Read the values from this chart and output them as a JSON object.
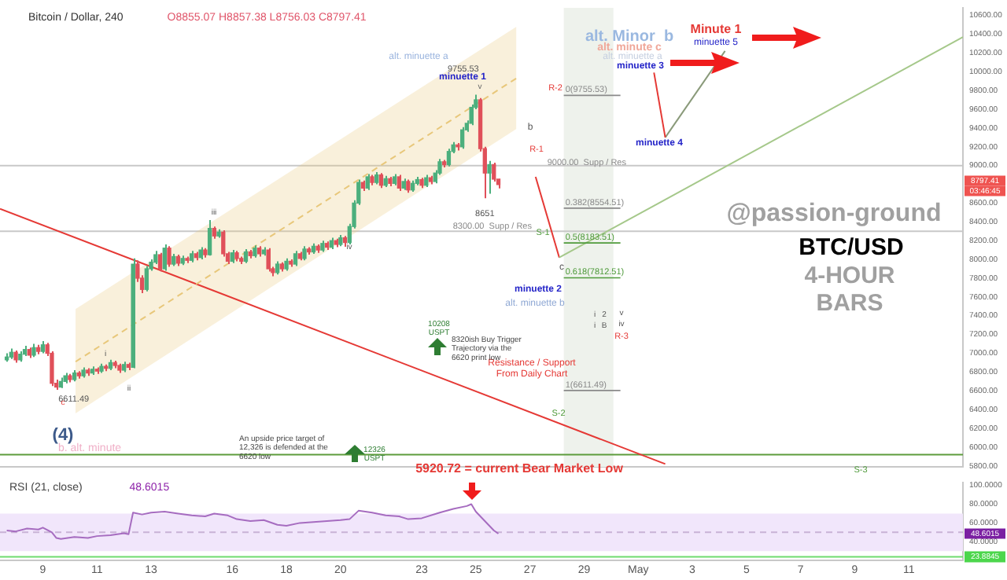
{
  "chart_data": [
    {
      "type": "candlestick",
      "title": "Bitcoin / Dollar, 240",
      "subtitle": "O8855.07 H8857.38 L8756.03 C8797.41",
      "x": [
        "--04-07T16:00",
        "--04-07T20:00",
        "--04-08T00:00",
        "--04-08T04:00",
        "--04-08T08:00",
        "--04-08T12:00",
        "--04-08T16:00",
        "--04-08T20:00",
        "--04-09T00:00",
        "--04-09T04:00",
        "--04-09T08:00",
        "--04-09T12:00",
        "--04-09T16:00",
        "--04-09T20:00",
        "--04-10T00:00",
        "--04-10T04:00",
        "--04-10T08:00",
        "--04-10T12:00",
        "--04-10T16:00",
        "--04-10T20:00",
        "--04-11T00:00",
        "--04-11T04:00",
        "--04-11T08:00",
        "--04-11T12:00",
        "--04-11T16:00",
        "--04-11T20:00",
        "--04-12T00:00",
        "--04-12T04:00",
        "--04-12T08:00",
        "--04-12T12:00",
        "--04-12T16:00",
        "--04-12T20:00",
        "--04-13T00:00",
        "--04-13T04:00",
        "--04-13T08:00",
        "--04-13T12:00",
        "--04-13T16:00",
        "--04-13T20:00",
        "--04-14T00:00",
        "--04-14T04:00",
        "--04-14T08:00",
        "--04-14T12:00",
        "--04-14T16:00",
        "--04-14T20:00",
        "--04-15T00:00",
        "--04-15T04:00",
        "--04-15T08:00",
        "--04-15T12:00",
        "--04-15T16:00",
        "--04-15T20:00",
        "--04-16T00:00",
        "--04-16T04:00",
        "--04-16T08:00",
        "--04-16T12:00",
        "--04-16T16:00",
        "--04-16T20:00",
        "--04-17T00:00",
        "--04-17T04:00",
        "--04-17T08:00",
        "--04-17T12:00",
        "--04-17T16:00",
        "--04-17T20:00",
        "--04-18T00:00",
        "--04-18T04:00",
        "--04-18T08:00",
        "--04-18T12:00",
        "--04-18T16:00",
        "--04-18T20:00",
        "--04-19T00:00",
        "--04-19T04:00",
        "--04-19T08:00",
        "--04-19T12:00",
        "--04-19T16:00",
        "--04-19T20:00",
        "--04-20T00:00",
        "--04-20T04:00",
        "--04-20T08:00",
        "--04-20T12:00",
        "--04-20T16:00",
        "--04-20T20:00",
        "--04-21T00:00",
        "--04-21T04:00",
        "--04-21T08:00",
        "--04-21T12:00",
        "--04-21T16:00",
        "--04-21T20:00",
        "--04-22T00:00",
        "--04-22T04:00",
        "--04-22T08:00",
        "--04-22T12:00",
        "--04-22T16:00",
        "--04-22T20:00",
        "--04-23T00:00",
        "--04-23T04:00",
        "--04-23T08:00",
        "--04-23T12:00",
        "--04-23T16:00",
        "--04-23T20:00",
        "--04-24T00:00",
        "--04-24T04:00",
        "--04-24T08:00",
        "--04-24T12:00",
        "--04-24T16:00",
        "--04-24T20:00",
        "--04-25T00:00",
        "--04-25T04:00",
        "--04-25T08:00",
        "--04-25T12:00",
        "--04-25T16:00",
        "--04-25T20:00"
      ],
      "ohlc": [
        [
          6930,
          7000,
          6910,
          6960
        ],
        [
          6960,
          7050,
          6940,
          7010
        ],
        [
          7010,
          7030,
          6900,
          6930
        ],
        [
          6930,
          7020,
          6910,
          6990
        ],
        [
          6990,
          7080,
          6970,
          7040
        ],
        [
          7040,
          7060,
          6950,
          6980
        ],
        [
          6980,
          7100,
          6960,
          7060
        ],
        [
          7060,
          7090,
          6990,
          7020
        ],
        [
          7020,
          7130,
          7000,
          7090
        ],
        [
          7090,
          7110,
          6970,
          7000
        ],
        [
          7000,
          7020,
          6650,
          6680
        ],
        [
          6680,
          6720,
          6611.49,
          6640
        ],
        [
          6640,
          6740,
          6630,
          6700
        ],
        [
          6700,
          6790,
          6680,
          6760
        ],
        [
          6760,
          6780,
          6690,
          6720
        ],
        [
          6720,
          6820,
          6700,
          6790
        ],
        [
          6790,
          6810,
          6730,
          6760
        ],
        [
          6760,
          6850,
          6740,
          6820
        ],
        [
          6820,
          6840,
          6760,
          6790
        ],
        [
          6790,
          6860,
          6770,
          6830
        ],
        [
          6830,
          6850,
          6780,
          6810
        ],
        [
          6810,
          6890,
          6790,
          6860
        ],
        [
          6860,
          6880,
          6810,
          6840
        ],
        [
          6840,
          6930,
          6820,
          6900
        ],
        [
          6900,
          6920,
          6840,
          6870
        ],
        [
          6870,
          6890,
          6790,
          6820
        ],
        [
          6820,
          6910,
          6800,
          6880
        ],
        [
          6880,
          6900,
          6820,
          6850
        ],
        [
          6850,
          8010,
          6840,
          7950
        ],
        [
          7950,
          7990,
          7760,
          7800
        ],
        [
          7800,
          7830,
          7640,
          7680
        ],
        [
          7680,
          7930,
          7660,
          7900
        ],
        [
          7900,
          8000,
          7880,
          7970
        ],
        [
          7970,
          8090,
          7950,
          8050
        ],
        [
          8050,
          8070,
          7870,
          7900
        ],
        [
          7900,
          8160,
          7880,
          8120
        ],
        [
          8120,
          8140,
          7920,
          7950
        ],
        [
          7950,
          8060,
          7930,
          8030
        ],
        [
          8030,
          8050,
          7930,
          7960
        ],
        [
          7960,
          8040,
          7940,
          8010
        ],
        [
          8010,
          8030,
          7960,
          7990
        ],
        [
          7990,
          8090,
          7970,
          8060
        ],
        [
          8060,
          8080,
          7990,
          8020
        ],
        [
          8020,
          8130,
          8000,
          8100
        ],
        [
          8100,
          8120,
          8020,
          8050
        ],
        [
          8050,
          8420,
          8040,
          8330
        ],
        [
          8330,
          8350,
          8220,
          8250
        ],
        [
          8250,
          8320,
          8230,
          8290
        ],
        [
          8290,
          8310,
          8030,
          8060
        ],
        [
          8060,
          8080,
          7950,
          7980
        ],
        [
          7980,
          8100,
          7960,
          8070
        ],
        [
          8070,
          8090,
          7980,
          8010
        ],
        [
          8010,
          8030,
          7950,
          7980
        ],
        [
          7980,
          8110,
          7960,
          8080
        ],
        [
          8080,
          8100,
          8010,
          8040
        ],
        [
          8040,
          8150,
          8020,
          8120
        ],
        [
          8120,
          8140,
          8030,
          8060
        ],
        [
          8060,
          8130,
          8040,
          8100
        ],
        [
          8100,
          8120,
          7870,
          7900
        ],
        [
          7900,
          7920,
          7820,
          7860
        ],
        [
          7860,
          7980,
          7840,
          7950
        ],
        [
          7950,
          7970,
          7870,
          7900
        ],
        [
          7900,
          8010,
          7880,
          7980
        ],
        [
          7980,
          8000,
          7920,
          7950
        ],
        [
          7950,
          8090,
          7930,
          8060
        ],
        [
          8060,
          8080,
          7990,
          8010
        ],
        [
          8010,
          8140,
          7990,
          8110
        ],
        [
          8110,
          8130,
          8050,
          8080
        ],
        [
          8080,
          8170,
          8060,
          8140
        ],
        [
          8140,
          8160,
          8070,
          8100
        ],
        [
          8100,
          8200,
          8080,
          8170
        ],
        [
          8170,
          8190,
          8100,
          8130
        ],
        [
          8130,
          8230,
          8110,
          8200
        ],
        [
          8200,
          8220,
          8130,
          8160
        ],
        [
          8160,
          8260,
          8140,
          8230
        ],
        [
          8230,
          8250,
          8135,
          8180
        ],
        [
          8180,
          8380,
          8160,
          8350
        ],
        [
          8350,
          8630,
          8330,
          8600
        ],
        [
          8600,
          8850,
          8580,
          8820
        ],
        [
          8820,
          8840,
          8730,
          8760
        ],
        [
          8760,
          8910,
          8740,
          8880
        ],
        [
          8880,
          8900,
          8790,
          8820
        ],
        [
          8820,
          8930,
          8800,
          8900
        ],
        [
          8900,
          8920,
          8760,
          8790
        ],
        [
          8790,
          8890,
          8770,
          8860
        ],
        [
          8860,
          8880,
          8780,
          8810
        ],
        [
          8810,
          8910,
          8790,
          8880
        ],
        [
          8880,
          8900,
          8730,
          8760
        ],
        [
          8760,
          8860,
          8740,
          8830
        ],
        [
          8830,
          8850,
          8710,
          8740
        ],
        [
          8740,
          8840,
          8720,
          8810
        ],
        [
          8810,
          8880,
          8790,
          8850
        ],
        [
          8850,
          8870,
          8760,
          8790
        ],
        [
          8790,
          8900,
          8770,
          8870
        ],
        [
          8870,
          8890,
          8800,
          8830
        ],
        [
          8830,
          8950,
          8810,
          8920
        ],
        [
          8920,
          9070,
          8900,
          9040
        ],
        [
          9040,
          9060,
          8980,
          9010
        ],
        [
          9010,
          9180,
          8990,
          9150
        ],
        [
          9150,
          9250,
          9130,
          9220
        ],
        [
          9220,
          9240,
          9160,
          9200
        ],
        [
          9200,
          9410,
          9180,
          9380
        ],
        [
          9380,
          9480,
          9360,
          9450
        ],
        [
          9450,
          9650,
          9430,
          9620
        ],
        [
          9620,
          9755.53,
          9600,
          9700
        ],
        [
          9700,
          9720,
          9150,
          9180
        ],
        [
          9180,
          9200,
          8651,
          8920
        ],
        [
          8920,
          9050,
          8700,
          9010
        ],
        [
          9010,
          9030,
          8830,
          8855.07
        ],
        [
          8855.07,
          8857.38,
          8756.03,
          8797.41
        ]
      ],
      "colors": [
        "#4caf7d",
        "#4caf7d",
        "#e0505a",
        "#4caf7d",
        "#4caf7d",
        "#e0505a",
        "#4caf7d",
        "#e0505a",
        "#4caf7d",
        "#e0505a",
        "#e0505a",
        "#e0505a",
        "#4caf7d",
        "#4caf7d",
        "#e0505a",
        "#4caf7d",
        "#e0505a",
        "#4caf7d",
        "#e0505a",
        "#4caf7d",
        "#e0505a",
        "#4caf7d",
        "#e0505a",
        "#4caf7d",
        "#e0505a",
        "#e0505a",
        "#4caf7d",
        "#e0505a",
        "#4caf7d",
        "#e0505a",
        "#e0505a",
        "#4caf7d",
        "#4caf7d",
        "#4caf7d",
        "#e0505a",
        "#4caf7d",
        "#e0505a",
        "#4caf7d",
        "#e0505a",
        "#4caf7d",
        "#e0505a",
        "#4caf7d",
        "#e0505a",
        "#4caf7d",
        "#e0505a",
        "#4caf7d",
        "#e0505a",
        "#4caf7d",
        "#e0505a",
        "#e0505a",
        "#4caf7d",
        "#e0505a",
        "#e0505a",
        "#4caf7d",
        "#e0505a",
        "#4caf7d",
        "#e0505a",
        "#4caf7d",
        "#e0505a",
        "#e0505a",
        "#4caf7d",
        "#e0505a",
        "#4caf7d",
        "#e0505a",
        "#4caf7d",
        "#e0505a",
        "#4caf7d",
        "#e0505a",
        "#4caf7d",
        "#e0505a",
        "#4caf7d",
        "#e0505a",
        "#4caf7d",
        "#e0505a",
        "#4caf7d",
        "#e0505a",
        "#4caf7d",
        "#4caf7d",
        "#4caf7d",
        "#e0505a",
        "#4caf7d",
        "#e0505a",
        "#4caf7d",
        "#e0505a",
        "#4caf7d",
        "#e0505a",
        "#4caf7d",
        "#e0505a",
        "#4caf7d",
        "#e0505a",
        "#4caf7d",
        "#4caf7d",
        "#e0505a",
        "#4caf7d",
        "#e0505a",
        "#4caf7d",
        "#4caf7d",
        "#e0505a",
        "#4caf7d",
        "#4caf7d",
        "#e0505a",
        "#4caf7d",
        "#4caf7d",
        "#4caf7d",
        "#4caf7d",
        "#e0505a",
        "#e0505a",
        "#4caf7d",
        "#e0505a",
        "#e0505a"
      ],
      "series": [
        {
          "type": "line",
          "color": "#e8c77a",
          "line_style": "dashed",
          "x": [
            "--04-10T05:00",
            "--04-26T12:00"
          ],
          "values": [
            6910,
            9930
          ],
          "lower": [
            6360,
            9390
          ],
          "upper": [
            7470,
            10480
          ]
        },
        {
          "type": "line",
          "color": "#e53935",
          "x": [
            "--04-07T10:00",
            "--05-02T00:00"
          ],
          "values": [
            8540,
            5820
          ]
        },
        {
          "type": "line",
          "color": "#a5c88a",
          "x": [
            "--04-28T02:00",
            "--05-13T00:00"
          ],
          "values": [
            8020,
            10370
          ]
        },
        {
          "type": "line",
          "color": "#e53935",
          "x": [
            "--04-27T05:00",
            "--04-28T02:00"
          ],
          "values": [
            8880,
            8020
          ]
        },
        {
          "type": "line",
          "color": "#e53935",
          "x": [
            "--05-01T14:00",
            "--05-02T00:00"
          ],
          "values": [
            9990,
            9300
          ]
        },
        {
          "type": "line",
          "color": "#8a9a7a",
          "x": [
            "--05-02T00:00",
            "--05-04T05:00"
          ],
          "values": [
            9300,
            10220
          ]
        }
      ],
      "xlim": [
        "--04-07T10:00",
        "--05-13T00:00"
      ],
      "ylim": [
        5790,
        10680
      ],
      "yticks": [
        {
          "value": 5800,
          "label": "5800.00"
        },
        {
          "value": 6000,
          "label": "6000.00"
        },
        {
          "value": 6200,
          "label": "6200.00"
        },
        {
          "value": 6400,
          "label": "6400.00"
        },
        {
          "value": 6600,
          "label": "6600.00"
        },
        {
          "value": 6800,
          "label": "6800.00"
        },
        {
          "value": 7000,
          "label": "7000.00"
        },
        {
          "value": 7200,
          "label": "7200.00"
        },
        {
          "value": 7400,
          "label": "7400.00"
        },
        {
          "value": 7600,
          "label": "7600.00"
        },
        {
          "value": 7800,
          "label": "7800.00"
        },
        {
          "value": 8000,
          "label": "8000.00"
        },
        {
          "value": 8200,
          "label": "8200.00"
        },
        {
          "value": 8400,
          "label": "8400.00"
        },
        {
          "value": 8600,
          "label": "8600.00"
        },
        {
          "value": 9000,
          "label": "9000.00"
        },
        {
          "value": 9200,
          "label": "9200.00"
        },
        {
          "value": 9400,
          "label": "9400.00"
        },
        {
          "value": 9600,
          "label": "9600.00"
        },
        {
          "value": 9800,
          "label": "9800.00"
        },
        {
          "value": 10000,
          "label": "10000.00"
        },
        {
          "value": 10200,
          "label": "10200.00"
        },
        {
          "value": 10400,
          "label": "10400.00"
        },
        {
          "value": 10600,
          "label": "10600.00"
        }
      ],
      "tick_labels": "y",
      "ref_lines": [
        {
          "axis": "y",
          "value": 9000,
          "label": "9000.00  Supp / Res",
          "color": "#c8c8c8"
        },
        {
          "axis": "y",
          "value": 8300,
          "label": "8300.00  Supp / Res",
          "color": "#c8c8c8"
        },
        {
          "axis": "y",
          "value": 5920.72,
          "label": "5920.72 = current Bear Market Low",
          "color": "#5d9c3c"
        }
      ],
      "bands": [
        {
          "axis": "x",
          "from": "--04-28T06:00",
          "to": "--04-30T02:00",
          "color": "#eef2ec"
        }
      ],
      "annotations": [
        {
          "text": "0(9755.53)",
          "x": "--04-28T06:00",
          "y": 9755.53
        },
        {
          "text": "0.382(8554.51)",
          "x": "--04-28T06:00",
          "y": 8554.51
        },
        {
          "text": "0.5(8183.51)",
          "x": "--04-28T06:00",
          "y": 8183.51
        },
        {
          "text": "0.618(7812.51)",
          "x": "--04-28T06:00",
          "y": 7812.51
        },
        {
          "text": "1(6611.49)",
          "x": "--04-28T06:00",
          "y": 6611.49
        },
        {
          "text": "8651",
          "x": "--04-25T08:00",
          "y": 8651
        },
        {
          "text": "6611.49",
          "x": "--04-09T12:00",
          "y": 6611.49
        },
        {
          "text": "9755.53",
          "x": "--04-25T00:00",
          "y": 9755.53
        },
        "@passion-ground",
        "BTC/USD",
        "4-HOUR BARS",
        "alt. Minor  b",
        "alt. minute c",
        "alt. minuette a",
        "minuette 3",
        "Minute 1",
        "minuette 5",
        "minuette 4",
        "alt. minuette a",
        "minuette 1",
        "v",
        "b",
        "R-2",
        "R-1",
        "S-1",
        "c",
        "minuette 2",
        "alt. minuette b",
        "i",
        "2",
        "v",
        "i",
        "B",
        "iv",
        "R-3",
        "S-2",
        "S-3",
        "iii",
        "iv",
        "ii",
        "i",
        "c",
        "(4)",
        "b. alt. minute",
        "Resistance / Support From Daily Chart",
        "10208 USPT",
        "8320ish Buy Trigger Trajectory via the 6620 print low",
        "12326 USPT",
        "An upside price target of 12,326 is defended at the 6620 low",
        "8797.41",
        "03:46:45"
      ]
    },
    {
      "type": "line",
      "title": "RSI (21, close)",
      "subtitle": "48.6015",
      "color": "#a66cc0",
      "x": [
        "--04-07T16:00",
        "--04-08T00:00",
        "--04-08T10:00",
        "--04-08T20:00",
        "--04-09T00:00",
        "--04-09T08:00",
        "--04-09T12:00",
        "--04-09T16:00",
        "--04-10T04:00",
        "--04-10T16:00",
        "--04-11T00:00",
        "--04-11T12:00",
        "--04-12T00:00",
        "--04-12T04:00",
        "--04-12T08:00",
        "--04-12T16:00",
        "--04-13T00:00",
        "--04-13T12:00",
        "--04-14T00:00",
        "--04-14T12:00",
        "--04-15T00:00",
        "--04-15T08:00",
        "--04-15T20:00",
        "--04-16T04:00",
        "--04-16T16:00",
        "--04-17T04:00",
        "--04-17T16:00",
        "--04-18T00:00",
        "--04-18T12:00",
        "--04-19T00:00",
        "--04-19T12:00",
        "--04-20T00:00",
        "--04-20T08:00",
        "--04-20T16:00",
        "--04-21T04:00",
        "--04-21T16:00",
        "--04-22T04:00",
        "--04-22T12:00",
        "--04-23T00:00",
        "--04-23T16:00",
        "--04-24T04:00",
        "--04-24T16:00",
        "--04-24T20:00",
        "--04-25T00:00",
        "--04-25T08:00",
        "--04-25T16:00",
        "--04-25T20:00"
      ],
      "values": [
        52,
        51,
        54,
        53,
        55,
        50,
        44,
        43,
        45,
        44,
        46,
        47,
        49,
        48,
        71,
        69,
        71,
        72,
        70,
        68,
        67,
        70,
        68,
        64,
        62,
        63,
        58,
        57,
        60,
        61,
        62,
        63,
        64,
        73,
        71,
        68,
        67,
        64,
        65,
        71,
        75,
        78,
        80,
        72,
        62,
        52,
        48.6015
      ],
      "xlim": [
        "--04-07T10:00",
        "--05-13T00:00"
      ],
      "ylim": [
        20,
        103
      ],
      "xticks": [
        {
          "value": "--04-09",
          "label": "9"
        },
        {
          "value": "--04-11",
          "label": "11"
        },
        {
          "value": "--04-13",
          "label": "13"
        },
        {
          "value": "--04-16",
          "label": "16"
        },
        {
          "value": "--04-18",
          "label": "18"
        },
        {
          "value": "--04-20",
          "label": "20"
        },
        {
          "value": "--04-23",
          "label": "23"
        },
        {
          "value": "--04-25",
          "label": "25"
        },
        {
          "value": "--04-27",
          "label": "27"
        },
        {
          "value": "--04-29",
          "label": "29"
        },
        {
          "value": "--05-01",
          "label": "May"
        },
        {
          "value": "--05-03",
          "label": "3"
        },
        {
          "value": "--05-05",
          "label": "5"
        },
        {
          "value": "--05-07",
          "label": "7"
        },
        {
          "value": "--05-09",
          "label": "9"
        },
        {
          "value": "--05-11",
          "label": "11"
        }
      ],
      "yticks": [
        {
          "value": 40,
          "label": "40.0000"
        },
        {
          "value": 60,
          "label": "60.0000"
        },
        {
          "value": 80,
          "label": "80.0000"
        },
        {
          "value": 100,
          "label": "100.0000"
        }
      ],
      "bands": [
        {
          "axis": "y",
          "from": 30,
          "to": 70,
          "color": "#f1e6fb"
        }
      ],
      "ref_lines": [
        {
          "axis": "y",
          "value": 50,
          "color": "#c9b3d6",
          "line_style": "dashed"
        },
        {
          "axis": "y",
          "value": 23.8845,
          "label": "23.8845",
          "color": "#6fdc6f"
        }
      ],
      "annotations": [
        "48.6015"
      ]
    }
  ]
}
